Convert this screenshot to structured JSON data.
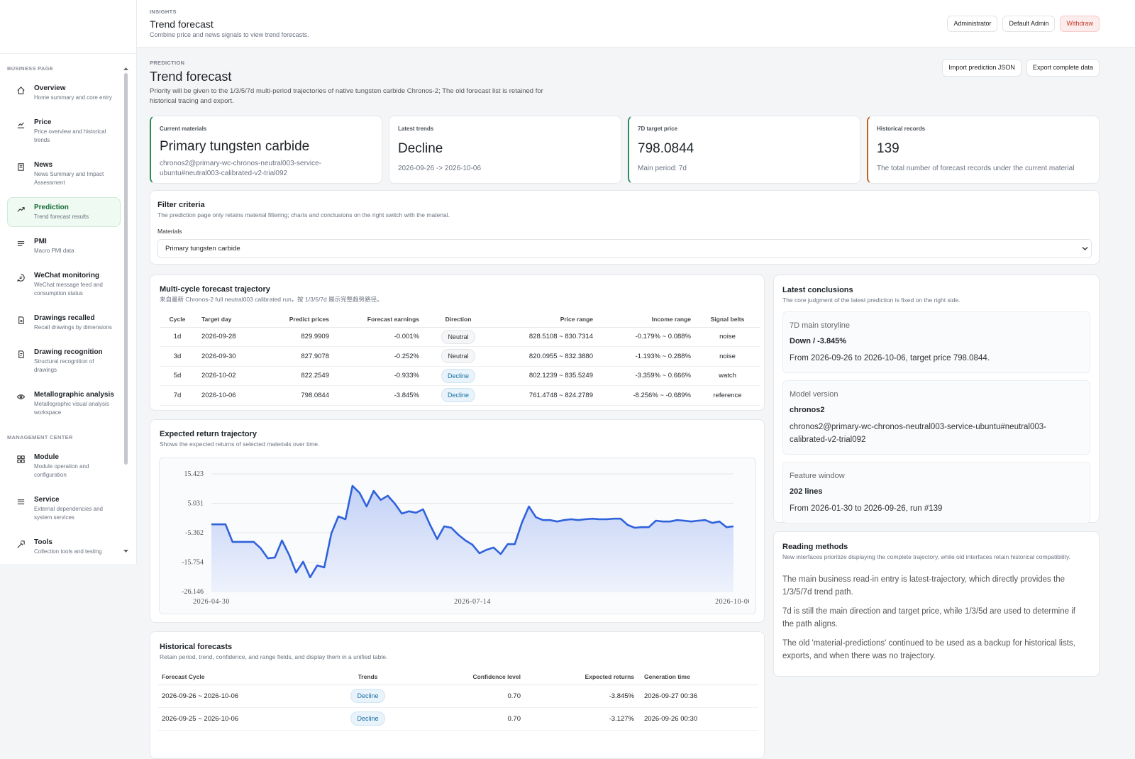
{
  "sidebar": {
    "sections": [
      {
        "title": "BUSINESS PAGE",
        "items": [
          {
            "label": "Overview",
            "desc": "Home summary and core entry"
          },
          {
            "label": "Price",
            "desc": "Price overview and historical trends"
          },
          {
            "label": "News",
            "desc": "News Summary and Impact Assessment"
          },
          {
            "label": "Prediction",
            "desc": "Trend forecast results"
          },
          {
            "label": "PMI",
            "desc": "Macro PMI data"
          },
          {
            "label": "WeChat monitoring",
            "desc": "WeChat message feed and consumption status"
          },
          {
            "label": "Drawings recalled",
            "desc": "Recall drawings by dimensions"
          },
          {
            "label": "Drawing recognition",
            "desc": "Structural recognition of drawings"
          },
          {
            "label": "Metallographic analysis",
            "desc": "Metallographic visual analysis workspace"
          }
        ]
      },
      {
        "title": "MANAGEMENT CENTER",
        "items": [
          {
            "label": "Module",
            "desc": "Module operation and configuration"
          },
          {
            "label": "Service",
            "desc": "External dependencies and system services"
          },
          {
            "label": "Tools",
            "desc": "Collection tools and testing"
          }
        ]
      }
    ]
  },
  "header": {
    "eyebrow": "INSIGHTS",
    "title": "Trend forecast",
    "subtitle": "Combine price and news signals to view trend forecasts.",
    "buttons": [
      "Administrator",
      "Default Admin",
      "Withdraw"
    ]
  },
  "page": {
    "eyebrow": "PREDICTION",
    "title": "Trend forecast",
    "description": "Priority will be given to the 1/3/5/7d multi-period trajectories of native tungsten carbide Chronos-2; The old forecast list is retained for historical tracing and export.",
    "actions": [
      "Import prediction JSON",
      "Export complete data"
    ]
  },
  "stats": [
    {
      "label": "Current materials",
      "value": "Primary tungsten carbide",
      "note": "chronos2@primary-wc-chronos-neutral003-service-ubuntu#neutral003-calibrated-v2-trial092"
    },
    {
      "label": "Latest trends",
      "value": "Decline",
      "note": "2026-09-26 -> 2026-10-06"
    },
    {
      "label": "7D target price",
      "value": "798.0844",
      "note": "Main period: 7d"
    },
    {
      "label": "Historical records",
      "value": "139",
      "note": "The total number of forecast records under the current material"
    }
  ],
  "filter": {
    "title": "Filter criteria",
    "description": "The prediction page only retains material filtering; charts and conclusions on the right switch with the material.",
    "field_label": "Materials",
    "selected": "Primary tungsten carbide"
  },
  "trajectory": {
    "title": "Multi-cycle forecast trajectory",
    "subtitle": "来自最新 Chronos-2 full neutral003 calibrated run，按 1/3/5/7d 展示完整趋势路径。",
    "columns": [
      "Cycle",
      "Target day",
      "Predict prices",
      "Forecast earnings",
      "Direction",
      "Price range",
      "Income range",
      "Signal belts"
    ],
    "rows": [
      [
        "1d",
        "2026-09-28",
        "829.9909",
        "-0.001%",
        "Neutral",
        "828.5108 ~ 830.7314",
        "-0.179% ~ 0.088%",
        "noise"
      ],
      [
        "3d",
        "2026-09-30",
        "827.9078",
        "-0.252%",
        "Neutral",
        "820.0955 ~ 832.3880",
        "-1.193% ~ 0.288%",
        "noise"
      ],
      [
        "5d",
        "2026-10-02",
        "822.2549",
        "-0.933%",
        "Decline",
        "802.1239 ~ 835.5249",
        "-3.359% ~ 0.666%",
        "watch"
      ],
      [
        "7d",
        "2026-10-06",
        "798.0844",
        "-3.845%",
        "Decline",
        "761.4748 ~ 824.2789",
        "-8.256% ~ -0.689%",
        "reference"
      ]
    ]
  },
  "chart_data": {
    "type": "line",
    "title": "Expected return trajectory",
    "subtitle": "Shows the expected returns of selected materials over time.",
    "categories": [
      "2026-04-30",
      null,
      null,
      null,
      null,
      null,
      null,
      null,
      null,
      null,
      null,
      null,
      null,
      null,
      null,
      null,
      null,
      null,
      null,
      null,
      null,
      null,
      null,
      null,
      null,
      null,
      null,
      null,
      null,
      null,
      null,
      null,
      null,
      null,
      null,
      null,
      null,
      "2026-07-14",
      null,
      null,
      null,
      null,
      null,
      null,
      null,
      null,
      null,
      null,
      null,
      null,
      null,
      null,
      null,
      null,
      null,
      null,
      null,
      null,
      null,
      null,
      null,
      null,
      null,
      null,
      null,
      null,
      null,
      null,
      null,
      null,
      null,
      null,
      null,
      null,
      "2026-10-06"
    ],
    "values": [
      -2.4,
      -2.4,
      -2.4,
      -8.6,
      -8.6,
      -8.6,
      -8.6,
      -10.9,
      -14.4,
      -14.1,
      -8.1,
      -13.1,
      -19.4,
      -15.6,
      -21.1,
      -16.9,
      -17.6,
      -5.6,
      0.4,
      -0.6,
      11.2,
      8.7,
      3.9,
      9.4,
      6.2,
      7.7,
      4.9,
      1.4,
      2.2,
      1.7,
      2.9,
      -2.6,
      -7.6,
      -3.1,
      -3.6,
      -6.1,
      -8.1,
      -9.6,
      -12.6,
      -11.4,
      -10.6,
      -12.9,
      -9.4,
      -9.4,
      -1.9,
      3.9,
      0.1,
      -0.9,
      -0.9,
      -1.4,
      -0.9,
      -0.6,
      -0.9,
      -0.6,
      -0.4,
      -0.6,
      -0.6,
      -0.4,
      -0.4,
      -2.6,
      -3.6,
      -3.4,
      -3.4,
      -1.1,
      -1.4,
      -1.4,
      -0.9,
      -1.1,
      -1.4,
      -1.1,
      -0.9,
      -1.9,
      -1.4,
      -3.4,
      -3.1
    ],
    "color": "#2f62db",
    "ylim": [
      -26.146,
      15.423
    ],
    "yticks": [
      -26.146,
      -15.754,
      -5.362,
      5.031,
      15.423
    ],
    "grid": true
  },
  "history": {
    "title": "Historical forecasts",
    "subtitle": "Retain period, trend, confidence, and range fields, and display them in a unified table.",
    "columns": [
      "Forecast Cycle",
      "Trends",
      "Confidence level",
      "Expected returns",
      "Generation time"
    ],
    "rows": [
      [
        "2026-09-26 ~ 2026-10-06",
        "Decline",
        "0.70",
        "-3.845%",
        "2026-09-27 00:36"
      ],
      [
        "2026-09-25 ~ 2026-10-06",
        "Decline",
        "0.70",
        "-3.127%",
        "2026-09-26 00:30"
      ]
    ]
  },
  "conclusions": {
    "title": "Latest conclusions",
    "subtitle": "The core judgment of the latest prediction is fixed on the right side.",
    "blocks": [
      {
        "label": "7D main storyline",
        "value": "Down / -3.845%",
        "text": "From 2026-09-26 to 2026-10-06, target price 798.0844."
      },
      {
        "label": "Model version",
        "value": "chronos2",
        "text": "chronos2@primary-wc-chronos-neutral003-service-ubuntu#neutral003-calibrated-v2-trial092"
      },
      {
        "label": "Feature window",
        "value": "202 lines",
        "text": "From 2026-01-30 to 2026-09-26, run #139"
      }
    ]
  },
  "reading": {
    "title": "Reading methods",
    "subtitle": "New interfaces prioritize displaying the complete trajectory, while old interfaces retain historical compatibility.",
    "paragraphs": [
      "The main business read-in entry is latest-trajectory, which directly provides the 1/3/5/7d trend path.",
      "7d is still the main direction and target price, while 1/3/5d are used to determine if the path aligns.",
      "The old 'material-predictions' continued to be used as a backup for historical lists, exports, and when there was no trajectory."
    ]
  }
}
